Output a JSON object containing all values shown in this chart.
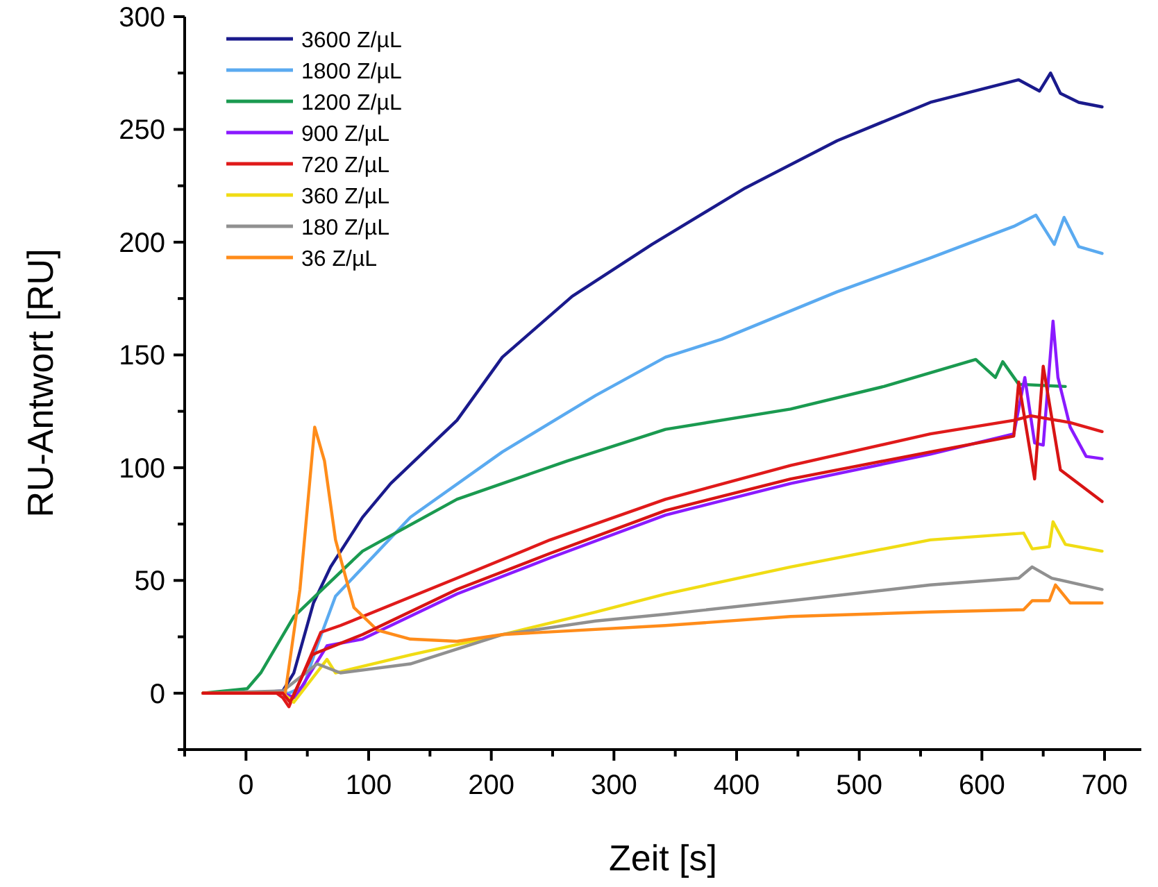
{
  "chart_data": {
    "type": "line",
    "xlabel": "Zeit [s]",
    "ylabel": "RU-Antwort [RU]",
    "xlim": [
      -50,
      730
    ],
    "ylim": [
      -25,
      300
    ],
    "xticks": [
      {
        "value": -50,
        "label": null
      },
      0,
      {
        "value": 50,
        "label": null
      },
      100,
      {
        "value": 150,
        "label": null
      },
      200,
      {
        "value": 250,
        "label": null
      },
      300,
      {
        "value": 350,
        "label": null
      },
      400,
      {
        "value": 450,
        "label": null
      },
      500,
      {
        "value": 550,
        "label": null
      },
      600,
      {
        "value": 650,
        "label": null
      },
      700
    ],
    "yticks": [
      {
        "value": -25,
        "label": null
      },
      0,
      {
        "value": 25,
        "label": null
      },
      50,
      {
        "value": 75,
        "label": null
      },
      100,
      {
        "value": 125,
        "label": null
      },
      150,
      {
        "value": 175,
        "label": null
      },
      200,
      {
        "value": 225,
        "label": null
      },
      250,
      {
        "value": 275,
        "label": null
      },
      300
    ],
    "grid": false,
    "legend": "top left",
    "marker": "none",
    "line_style": "solid",
    "series": [
      {
        "name": "3600 Z/µL",
        "color": "#1a1a8c",
        "x": [
          -35,
          0,
          30,
          39,
          55,
          69,
          95,
          118,
          172,
          209,
          266,
          331,
          407,
          482,
          558,
          630,
          647,
          656,
          664,
          679,
          698
        ],
        "values": [
          0,
          0,
          1,
          9,
          40,
          56,
          78,
          93,
          121,
          149,
          176,
          199,
          224,
          245,
          262,
          272,
          267,
          275,
          266,
          262,
          260
        ]
      },
      {
        "name": "1800 Z/µL",
        "color": "#5aaaf0",
        "x": [
          -35,
          0,
          35,
          47,
          58,
          73,
          134,
          209,
          285,
          342,
          388,
          482,
          558,
          626,
          644,
          659,
          667,
          679,
          698
        ],
        "values": [
          0,
          0,
          0,
          3,
          21,
          43,
          78,
          107,
          132,
          149,
          157,
          178,
          193,
          207,
          212,
          199,
          211,
          198,
          195
        ]
      },
      {
        "name": "1200 Z/µL",
        "color": "#1a9a50",
        "x": [
          -35,
          1,
          12,
          39,
          95,
          172,
          262,
          342,
          444,
          520,
          595,
          611,
          617,
          630,
          668
        ],
        "values": [
          0,
          2,
          9,
          34,
          63,
          86,
          103,
          117,
          126,
          136,
          148,
          140,
          147,
          137,
          136
        ]
      },
      {
        "name": "900 Z/µL",
        "color": "#8a1aff",
        "x": [
          -35,
          30,
          40,
          66,
          95,
          172,
          248,
          342,
          444,
          558,
          626,
          635,
          643,
          650,
          658,
          662,
          672,
          685,
          698
        ],
        "values": [
          0,
          0,
          -2,
          21,
          24,
          44,
          60,
          79,
          93,
          106,
          115,
          140,
          111,
          110,
          165,
          140,
          118,
          105,
          104
        ]
      },
      {
        "name": "720 Z/µL",
        "color": "#e01a1a",
        "x": [
          -35,
          25,
          30,
          35,
          61,
          77,
          172,
          248,
          342,
          444,
          558,
          626,
          640,
          672,
          698
        ],
        "values": [
          0,
          0,
          -2,
          -6,
          27,
          30,
          51,
          68,
          86,
          101,
          115,
          121,
          123,
          120,
          116
        ]
      },
      {
        "name": "360 Z/µL",
        "color": "#f0dc14",
        "x": [
          -35,
          30,
          39,
          66,
          73,
          134,
          209,
          285,
          342,
          444,
          558,
          634,
          641,
          655,
          658,
          668,
          698
        ],
        "values": [
          0,
          0,
          -4,
          15,
          9,
          17,
          26,
          36,
          44,
          56,
          68,
          71,
          64,
          65,
          76,
          66,
          63
        ]
      },
      {
        "name": "180 Z/µL",
        "color": "#909090",
        "x": [
          -35,
          30,
          58,
          77,
          134,
          209,
          285,
          342,
          444,
          558,
          630,
          641,
          657,
          698
        ],
        "values": [
          0,
          1,
          13,
          9,
          13,
          26,
          32,
          35,
          41,
          48,
          51,
          56,
          51,
          46
        ]
      },
      {
        "name": "36 Z/µL",
        "color": "#ff8c1a",
        "x": [
          -35,
          32,
          44,
          56,
          64,
          73,
          88,
          107,
          134,
          172,
          209,
          342,
          444,
          558,
          634,
          641,
          655,
          660,
          672,
          698
        ],
        "values": [
          0,
          0,
          46,
          118,
          103,
          68,
          38,
          28,
          24,
          23,
          26,
          30,
          34,
          36,
          37,
          41,
          41,
          48,
          40,
          40
        ]
      },
      {
        "color": "#d81414",
        "x": [
          -35,
          30,
          36,
          54,
          58,
          95,
          172,
          248,
          342,
          444,
          558,
          626,
          630,
          643,
          650,
          664,
          698
        ],
        "values": [
          0,
          0,
          -4,
          17,
          18,
          26,
          46,
          62,
          81,
          95,
          107,
          114,
          138,
          95,
          145,
          99,
          85
        ]
      }
    ]
  }
}
